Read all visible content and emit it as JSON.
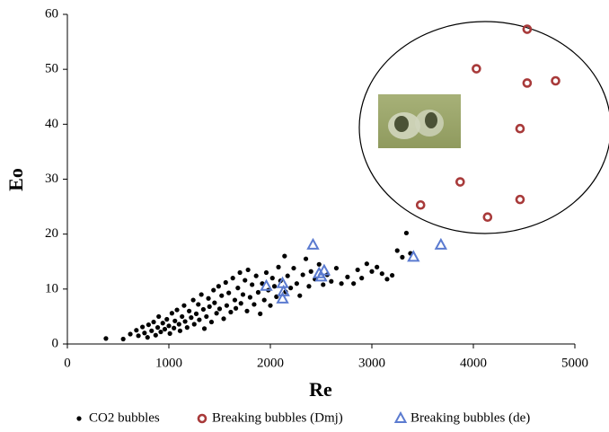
{
  "chart_data": {
    "type": "scatter",
    "x_label": "Re",
    "y_label": "Eo",
    "xlim": [
      0,
      5000
    ],
    "xticks": [
      0,
      1000,
      2000,
      3000,
      4000,
      5000
    ],
    "ylim": [
      0,
      60
    ],
    "yticks": [
      0,
      10,
      20,
      30,
      40,
      50,
      60
    ],
    "grid": false,
    "legend": "bottom",
    "series": [
      {
        "name": "CO2 bubbles",
        "color": "#000000",
        "marker": "dot",
        "x": [
          380,
          550,
          620,
          680,
          700,
          740,
          760,
          790,
          800,
          830,
          850,
          870,
          890,
          900,
          920,
          940,
          960,
          980,
          1000,
          1010,
          1030,
          1050,
          1060,
          1080,
          1100,
          1110,
          1130,
          1150,
          1160,
          1180,
          1200,
          1220,
          1240,
          1250,
          1270,
          1290,
          1300,
          1320,
          1340,
          1350,
          1370,
          1390,
          1400,
          1420,
          1440,
          1450,
          1470,
          1490,
          1500,
          1520,
          1540,
          1560,
          1570,
          1590,
          1610,
          1630,
          1650,
          1660,
          1680,
          1700,
          1710,
          1730,
          1750,
          1770,
          1780,
          1800,
          1820,
          1840,
          1860,
          1880,
          1900,
          1920,
          1940,
          1960,
          1980,
          2000,
          2020,
          2040,
          2060,
          2080,
          2100,
          2140,
          2150,
          2170,
          2200,
          2230,
          2260,
          2290,
          2320,
          2350,
          2380,
          2400,
          2440,
          2480,
          2520,
          2560,
          2600,
          2650,
          2700,
          2760,
          2820,
          2860,
          2900,
          2950,
          3000,
          3050,
          3100,
          3150,
          3200,
          3250,
          3300,
          3340,
          3380
        ],
        "values": [
          1.0,
          0.9,
          1.8,
          2.5,
          1.5,
          3.1,
          2.0,
          1.2,
          3.5,
          2.4,
          4.0,
          1.6,
          3.0,
          5.0,
          2.2,
          3.8,
          2.7,
          4.5,
          3.3,
          1.9,
          5.6,
          2.9,
          4.2,
          6.2,
          3.6,
          2.4,
          5.0,
          7.0,
          4.1,
          3.0,
          6.0,
          4.8,
          8.0,
          3.6,
          5.5,
          7.2,
          4.4,
          9.0,
          6.3,
          2.8,
          5.0,
          8.3,
          6.8,
          4.0,
          9.8,
          7.5,
          5.6,
          10.5,
          6.4,
          8.8,
          4.6,
          11.2,
          7.0,
          9.3,
          5.8,
          12.0,
          8.0,
          6.5,
          10.2,
          13.0,
          7.4,
          9.0,
          11.6,
          6.0,
          13.5,
          8.5,
          10.8,
          7.2,
          12.4,
          9.4,
          5.5,
          11.0,
          8.0,
          13.0,
          9.8,
          7.0,
          12.0,
          10.5,
          8.6,
          14.0,
          11.5,
          16.0,
          9.5,
          12.4,
          10.2,
          13.8,
          11.0,
          8.8,
          12.6,
          15.5,
          10.5,
          13.2,
          11.8,
          14.5,
          10.8,
          12.6,
          11.4,
          13.8,
          11.0,
          12.2,
          11.0,
          13.5,
          12.0,
          14.6,
          13.2,
          14.0,
          12.8,
          11.8,
          12.5,
          17.0,
          15.8,
          20.2,
          16.5
        ]
      },
      {
        "name": "Breaking bubbles (Dmj)",
        "color": "#a83a3a",
        "marker": "circle",
        "x": [
          4530,
          4030,
          4530,
          4810,
          4460,
          3870,
          3480,
          4460,
          4140
        ],
        "values": [
          57.3,
          50.1,
          47.5,
          47.9,
          39.2,
          29.5,
          25.3,
          26.3,
          23.1
        ]
      },
      {
        "name": "Breaking bubbles (de)",
        "color": "#5b7bd0",
        "marker": "triangle",
        "x": [
          2420,
          3680,
          3410,
          2530,
          2480,
          2500,
          1960,
          2120,
          2130,
          2120
        ],
        "values": [
          18,
          18,
          15.8,
          13.3,
          12.8,
          12.2,
          10.5,
          11,
          9.5,
          8.2
        ]
      }
    ]
  }
}
